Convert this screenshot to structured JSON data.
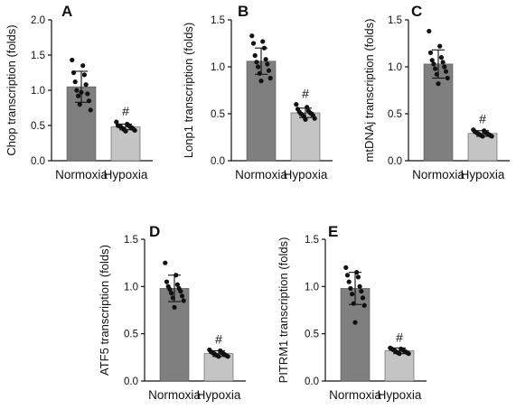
{
  "chart_data": [
    {
      "panel_label": "A",
      "type": "bar",
      "ylabel": "Chop transcription (folds)",
      "ylim": [
        0,
        2.0
      ],
      "yticks": [
        "0.0",
        "0.5",
        "1.0",
        "1.5",
        "2.0"
      ],
      "tick_values": [
        0,
        0.5,
        1.0,
        1.5,
        2.0
      ],
      "categories": [
        "Normoxia",
        "Hypoxia"
      ],
      "values": [
        1.05,
        0.48
      ],
      "sd": [
        0.22,
        0.04
      ],
      "annotations": [
        "",
        "#"
      ],
      "points": [
        [
          1.43,
          1.35,
          1.25,
          1.22,
          1.12,
          1.08,
          1.0,
          0.95,
          0.92,
          0.85,
          0.8,
          0.72,
          0.97
        ],
        [
          0.55,
          0.52,
          0.5,
          0.5,
          0.49,
          0.48,
          0.48,
          0.47,
          0.46,
          0.45,
          0.44,
          0.43,
          0.42
        ]
      ],
      "colors": [
        "#7f7f7f",
        "#c4c4c4"
      ]
    },
    {
      "panel_label": "B",
      "type": "bar",
      "ylabel": "Lonp1 transcription (folds)",
      "ylim": [
        0,
        1.5
      ],
      "yticks": [
        "0.0",
        "0.5",
        "1.0",
        "1.5"
      ],
      "tick_values": [
        0,
        0.5,
        1.0,
        1.5
      ],
      "categories": [
        "Normoxia",
        "Hypoxia"
      ],
      "values": [
        1.06,
        0.51
      ],
      "sd": [
        0.14,
        0.05
      ],
      "annotations": [
        "",
        "#"
      ],
      "points": [
        [
          1.33,
          1.27,
          1.25,
          1.2,
          1.12,
          1.08,
          1.05,
          1.03,
          1.0,
          0.96,
          0.93,
          0.88,
          0.85
        ],
        [
          0.6,
          0.57,
          0.55,
          0.53,
          0.52,
          0.51,
          0.5,
          0.5,
          0.49,
          0.48,
          0.47,
          0.45,
          0.44
        ]
      ],
      "colors": [
        "#7f7f7f",
        "#c4c4c4"
      ]
    },
    {
      "panel_label": "C",
      "type": "bar",
      "ylabel": "mtDNAj transcription (folds)",
      "ylim": [
        0,
        1.5
      ],
      "yticks": [
        "0.0",
        "0.5",
        "1.0",
        "1.5"
      ],
      "tick_values": [
        0,
        0.5,
        1.0,
        1.5
      ],
      "categories": [
        "Normoxia",
        "Hypoxia"
      ],
      "values": [
        1.03,
        0.29
      ],
      "sd": [
        0.15,
        0.03
      ],
      "annotations": [
        "",
        "#"
      ],
      "points": [
        [
          1.38,
          1.22,
          1.15,
          1.1,
          1.07,
          1.05,
          1.03,
          1.0,
          0.98,
          0.95,
          0.92,
          0.88,
          0.82
        ],
        [
          0.33,
          0.32,
          0.31,
          0.3,
          0.3,
          0.29,
          0.29,
          0.28,
          0.28,
          0.27,
          0.27,
          0.26,
          0.26
        ]
      ],
      "colors": [
        "#7f7f7f",
        "#c4c4c4"
      ]
    },
    {
      "panel_label": "D",
      "type": "bar",
      "ylabel": "ATF5 transcription (folds)",
      "ylim": [
        0,
        1.5
      ],
      "yticks": [
        "0.0",
        "0.5",
        "1.0",
        "1.5"
      ],
      "tick_values": [
        0,
        0.5,
        1.0,
        1.5
      ],
      "categories": [
        "Normoxia",
        "Hypoxia"
      ],
      "values": [
        0.98,
        0.29
      ],
      "sd": [
        0.14,
        0.03
      ],
      "annotations": [
        "",
        "#"
      ],
      "points": [
        [
          1.25,
          1.12,
          1.05,
          1.02,
          1.0,
          0.98,
          0.97,
          0.95,
          0.93,
          0.9,
          0.88,
          0.85,
          0.78
        ],
        [
          0.33,
          0.32,
          0.31,
          0.3,
          0.3,
          0.29,
          0.29,
          0.28,
          0.28,
          0.27,
          0.27,
          0.26,
          0.26
        ]
      ],
      "colors": [
        "#7f7f7f",
        "#c4c4c4"
      ]
    },
    {
      "panel_label": "E",
      "type": "bar",
      "ylabel": "PITRM1  transcription (folds)",
      "ylim": [
        0,
        1.5
      ],
      "yticks": [
        "0.0",
        "0.5",
        "1.0",
        "1.5"
      ],
      "tick_values": [
        0,
        0.5,
        1.0,
        1.5
      ],
      "categories": [
        "Normoxia",
        "Hypoxia"
      ],
      "values": [
        0.98,
        0.32
      ],
      "sd": [
        0.17,
        0.03
      ],
      "annotations": [
        "",
        "#"
      ],
      "points": [
        [
          1.2,
          1.15,
          1.12,
          1.1,
          1.05,
          1.0,
          0.98,
          0.95,
          0.92,
          0.88,
          0.82,
          0.8,
          0.62
        ],
        [
          0.35,
          0.34,
          0.34,
          0.33,
          0.33,
          0.32,
          0.32,
          0.31,
          0.31,
          0.3,
          0.3,
          0.29,
          0.29
        ]
      ],
      "colors": [
        "#7f7f7f",
        "#c4c4c4"
      ]
    }
  ]
}
